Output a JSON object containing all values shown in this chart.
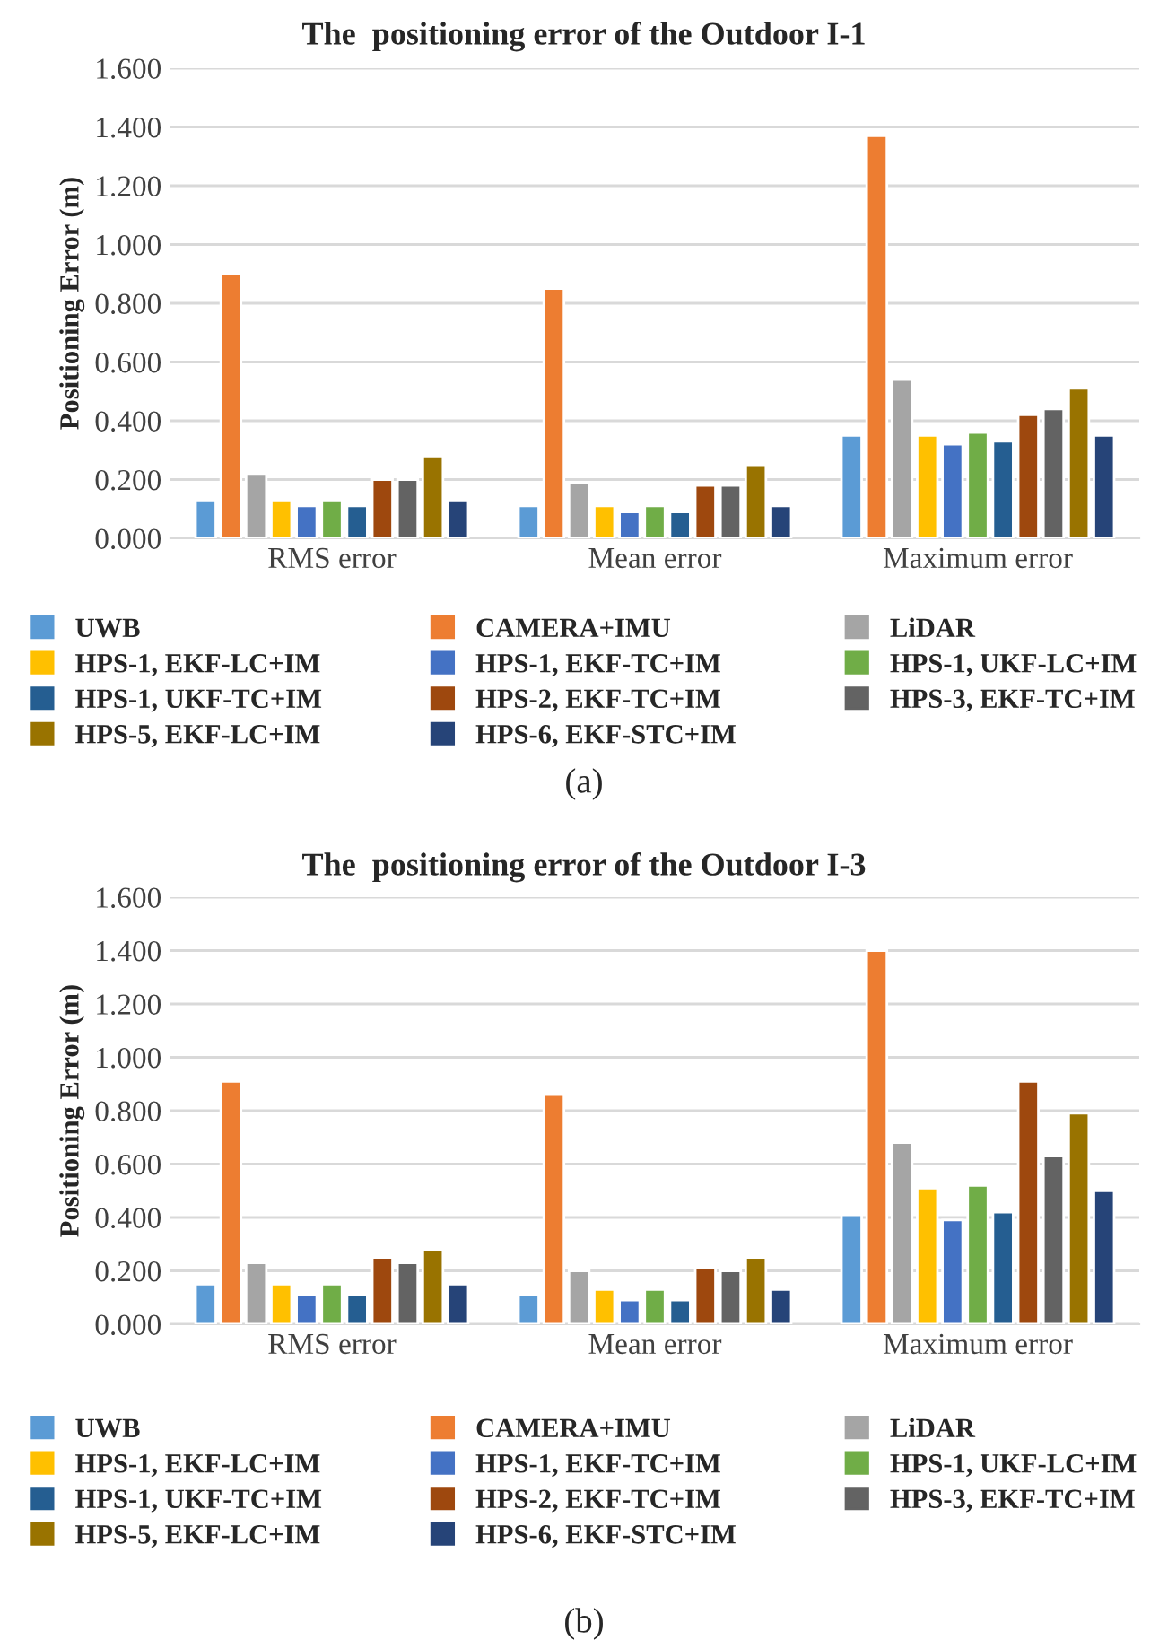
{
  "chart_data": [
    {
      "type": "bar",
      "title": "The  positioning error of the Outdoor I-1",
      "ylabel": "Positioning Error (m)",
      "categories": [
        "RMS error",
        "Mean error",
        "Maximum error"
      ],
      "series": [
        {
          "name": "UWB",
          "color": "#5b9bd5",
          "values": [
            0.13,
            0.11,
            0.35
          ]
        },
        {
          "name": "CAMERA+IMU",
          "color": "#ed7d31",
          "values": [
            0.9,
            0.85,
            1.37
          ]
        },
        {
          "name": "LiDAR",
          "color": "#a5a5a5",
          "values": [
            0.22,
            0.19,
            0.54
          ]
        },
        {
          "name": "HPS-1, EKF-LC+IM",
          "color": "#ffc000",
          "values": [
            0.13,
            0.11,
            0.35
          ]
        },
        {
          "name": "HPS-1, EKF-TC+IM",
          "color": "#4472c4",
          "values": [
            0.11,
            0.09,
            0.32
          ]
        },
        {
          "name": "HPS-1, UKF-LC+IM",
          "color": "#70ad47",
          "values": [
            0.13,
            0.11,
            0.36
          ]
        },
        {
          "name": "HPS-1, UKF-TC+IM",
          "color": "#255e91",
          "values": [
            0.11,
            0.09,
            0.33
          ]
        },
        {
          "name": "HPS-2, EKF-TC+IM",
          "color": "#9e480e",
          "values": [
            0.2,
            0.18,
            0.42
          ]
        },
        {
          "name": "HPS-3, EKF-TC+IM",
          "color": "#636363",
          "values": [
            0.2,
            0.18,
            0.44
          ]
        },
        {
          "name": "HPS-5, EKF-LC+IM",
          "color": "#997300",
          "values": [
            0.28,
            0.25,
            0.51
          ]
        },
        {
          "name": "HPS-6, EKF-STC+IM",
          "color": "#264478",
          "values": [
            0.13,
            0.11,
            0.35
          ]
        }
      ],
      "ylim": [
        0,
        1.6
      ],
      "yticks": [
        {
          "value": 0,
          "label": "0.000"
        },
        {
          "value": 0.2,
          "label": "0.200"
        },
        {
          "value": 0.4,
          "label": "0.400"
        },
        {
          "value": 0.6,
          "label": "0.600"
        },
        {
          "value": 0.8,
          "label": "0.800"
        },
        {
          "value": 1.0,
          "label": "1.000"
        },
        {
          "value": 1.2,
          "label": "1.200"
        },
        {
          "value": 1.4,
          "label": "1.400"
        },
        {
          "value": 1.6,
          "label": "1.600"
        }
      ],
      "grid": "y",
      "legend": "bottom",
      "annotations": [
        "(a)"
      ]
    },
    {
      "type": "bar",
      "title": "The  positioning error of the Outdoor I-3",
      "ylabel": "Positioning Error (m)",
      "categories": [
        "RMS error",
        "Mean error",
        "Maximum error"
      ],
      "series": [
        {
          "name": "UWB",
          "color": "#5b9bd5",
          "values": [
            0.15,
            0.11,
            0.41
          ]
        },
        {
          "name": "CAMERA+IMU",
          "color": "#ed7d31",
          "values": [
            0.91,
            0.86,
            1.4
          ]
        },
        {
          "name": "LiDAR",
          "color": "#a5a5a5",
          "values": [
            0.23,
            0.2,
            0.68
          ]
        },
        {
          "name": "HPS-1, EKF-LC+IM",
          "color": "#ffc000",
          "values": [
            0.15,
            0.13,
            0.51
          ]
        },
        {
          "name": "HPS-1, EKF-TC+IM",
          "color": "#4472c4",
          "values": [
            0.11,
            0.09,
            0.39
          ]
        },
        {
          "name": "HPS-1, UKF-LC+IM",
          "color": "#70ad47",
          "values": [
            0.15,
            0.13,
            0.52
          ]
        },
        {
          "name": "HPS-1, UKF-TC+IM",
          "color": "#255e91",
          "values": [
            0.11,
            0.09,
            0.42
          ]
        },
        {
          "name": "HPS-2, EKF-TC+IM",
          "color": "#9e480e",
          "values": [
            0.25,
            0.21,
            0.91
          ]
        },
        {
          "name": "HPS-3, EKF-TC+IM",
          "color": "#636363",
          "values": [
            0.23,
            0.2,
            0.63
          ]
        },
        {
          "name": "HPS-5, EKF-LC+IM",
          "color": "#997300",
          "values": [
            0.28,
            0.25,
            0.79
          ]
        },
        {
          "name": "HPS-6, EKF-STC+IM",
          "color": "#264478",
          "values": [
            0.15,
            0.13,
            0.5
          ]
        }
      ],
      "ylim": [
        0,
        1.6
      ],
      "yticks": [
        {
          "value": 0,
          "label": "0.000"
        },
        {
          "value": 0.2,
          "label": "0.200"
        },
        {
          "value": 0.4,
          "label": "0.400"
        },
        {
          "value": 0.6,
          "label": "0.600"
        },
        {
          "value": 0.8,
          "label": "0.800"
        },
        {
          "value": 1.0,
          "label": "1.000"
        },
        {
          "value": 1.2,
          "label": "1.200"
        },
        {
          "value": 1.4,
          "label": "1.400"
        },
        {
          "value": 1.6,
          "label": "1.600"
        }
      ],
      "grid": "y",
      "legend": "bottom",
      "annotations": [
        "(b)"
      ]
    }
  ]
}
